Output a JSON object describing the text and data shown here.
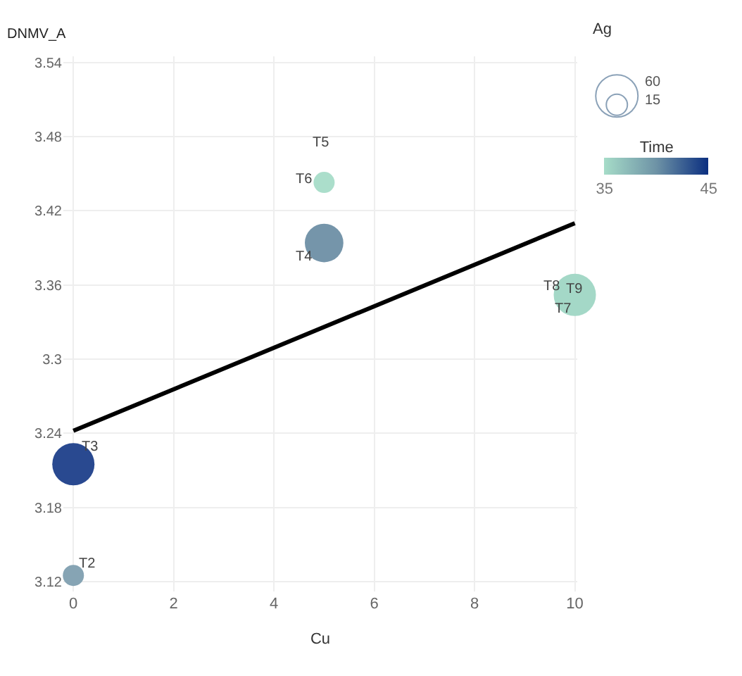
{
  "chart_data": {
    "type": "bubble",
    "xlabel": "Cu",
    "ylabel": "DNMV_A",
    "legend_title": "Ag",
    "clabel": "Time",
    "xlim": [
      -0.2,
      10.05
    ],
    "xticks": [
      0,
      2,
      4,
      6,
      8,
      10
    ],
    "ylim": [
      3.112,
      3.545
    ],
    "yticks": [
      3.12,
      3.18,
      3.24,
      3.3,
      3.36,
      3.42,
      3.48,
      3.54
    ],
    "grid": true,
    "clim": [
      35,
      45
    ],
    "cticks": [
      35,
      45
    ],
    "size_legend": [
      60,
      15
    ],
    "series": [
      {
        "x": [
          0,
          0,
          5,
          5,
          10
        ],
        "values": [
          3.125,
          3.215,
          3.394,
          3.443,
          3.352
        ],
        "sizes": [
          15,
          60,
          50,
          15,
          60
        ],
        "colors": [
          "#7f9fb0",
          "#1e3f8a",
          "#6e8fa5",
          "#a6dcc8",
          "#9fd6c4"
        ]
      },
      {
        "type": "line",
        "x": [
          0,
          10
        ],
        "values": [
          3.242,
          3.41
        ],
        "color": "#000000"
      }
    ],
    "annotations": [
      {
        "text": "T2",
        "x": 0,
        "y": 3.125
      },
      {
        "text": "T3",
        "x": 0,
        "y": 3.215
      },
      {
        "text": "T4",
        "x": 5,
        "y": 3.394
      },
      {
        "text": "T5",
        "x": 5,
        "y": 3.443
      },
      {
        "text": "T6",
        "x": 5,
        "y": 3.443
      },
      {
        "text": "T7",
        "x": 10,
        "y": 3.352
      },
      {
        "text": "T8",
        "x": 10,
        "y": 3.352
      },
      {
        "text": "T9",
        "x": 10,
        "y": 3.352
      }
    ]
  }
}
